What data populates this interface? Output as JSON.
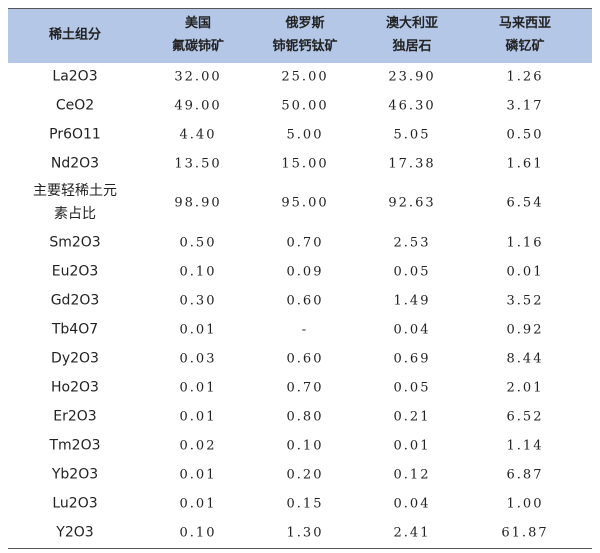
{
  "table": {
    "header": [
      [
        "稀土组分"
      ],
      [
        "美国",
        "氟碳铈矿"
      ],
      [
        "俄罗斯",
        "铈铌钙钛矿"
      ],
      [
        "澳大利亚",
        "独居石"
      ],
      [
        "马来西亚",
        "磷钇矿"
      ]
    ],
    "rows": [
      [
        [
          "La2O3"
        ],
        "32.00",
        "25.00",
        "23.90",
        "1.26"
      ],
      [
        [
          "CeO2"
        ],
        "49.00",
        "50.00",
        "46.30",
        "3.17"
      ],
      [
        [
          "Pr6O11"
        ],
        "4.40",
        "5.00",
        "5.05",
        "0.50"
      ],
      [
        [
          "Nd2O3"
        ],
        "13.50",
        "15.00",
        "17.38",
        "1.61"
      ],
      [
        [
          "主要轻稀土元",
          "素占比"
        ],
        "98.90",
        "95.00",
        "92.63",
        "6.54"
      ],
      [
        [
          "Sm2O3"
        ],
        "0.50",
        "0.70",
        "2.53",
        "1.16"
      ],
      [
        [
          "Eu2O3"
        ],
        "0.10",
        "0.09",
        "0.05",
        "0.01"
      ],
      [
        [
          "Gd2O3"
        ],
        "0.30",
        "0.60",
        "1.49",
        "3.52"
      ],
      [
        [
          "Tb4O7"
        ],
        "0.01",
        "-",
        "0.04",
        "0.92"
      ],
      [
        [
          "Dy2O3"
        ],
        "0.03",
        "0.60",
        "0.69",
        "8.44"
      ],
      [
        [
          "Ho2O3"
        ],
        "0.01",
        "0.70",
        "0.05",
        "2.01"
      ],
      [
        [
          "Er2O3"
        ],
        "0.01",
        "0.80",
        "0.21",
        "6.52"
      ],
      [
        [
          "Tm2O3"
        ],
        "0.02",
        "0.10",
        "0.01",
        "1.14"
      ],
      [
        [
          "Yb2O3"
        ],
        "0.01",
        "0.20",
        "0.12",
        "6.87"
      ],
      [
        [
          "Lu2O3"
        ],
        "0.01",
        "0.15",
        "0.04",
        "1.00"
      ],
      [
        [
          "Y2O3"
        ],
        "0.10",
        "1.30",
        "2.41",
        "61.87"
      ]
    ]
  }
}
